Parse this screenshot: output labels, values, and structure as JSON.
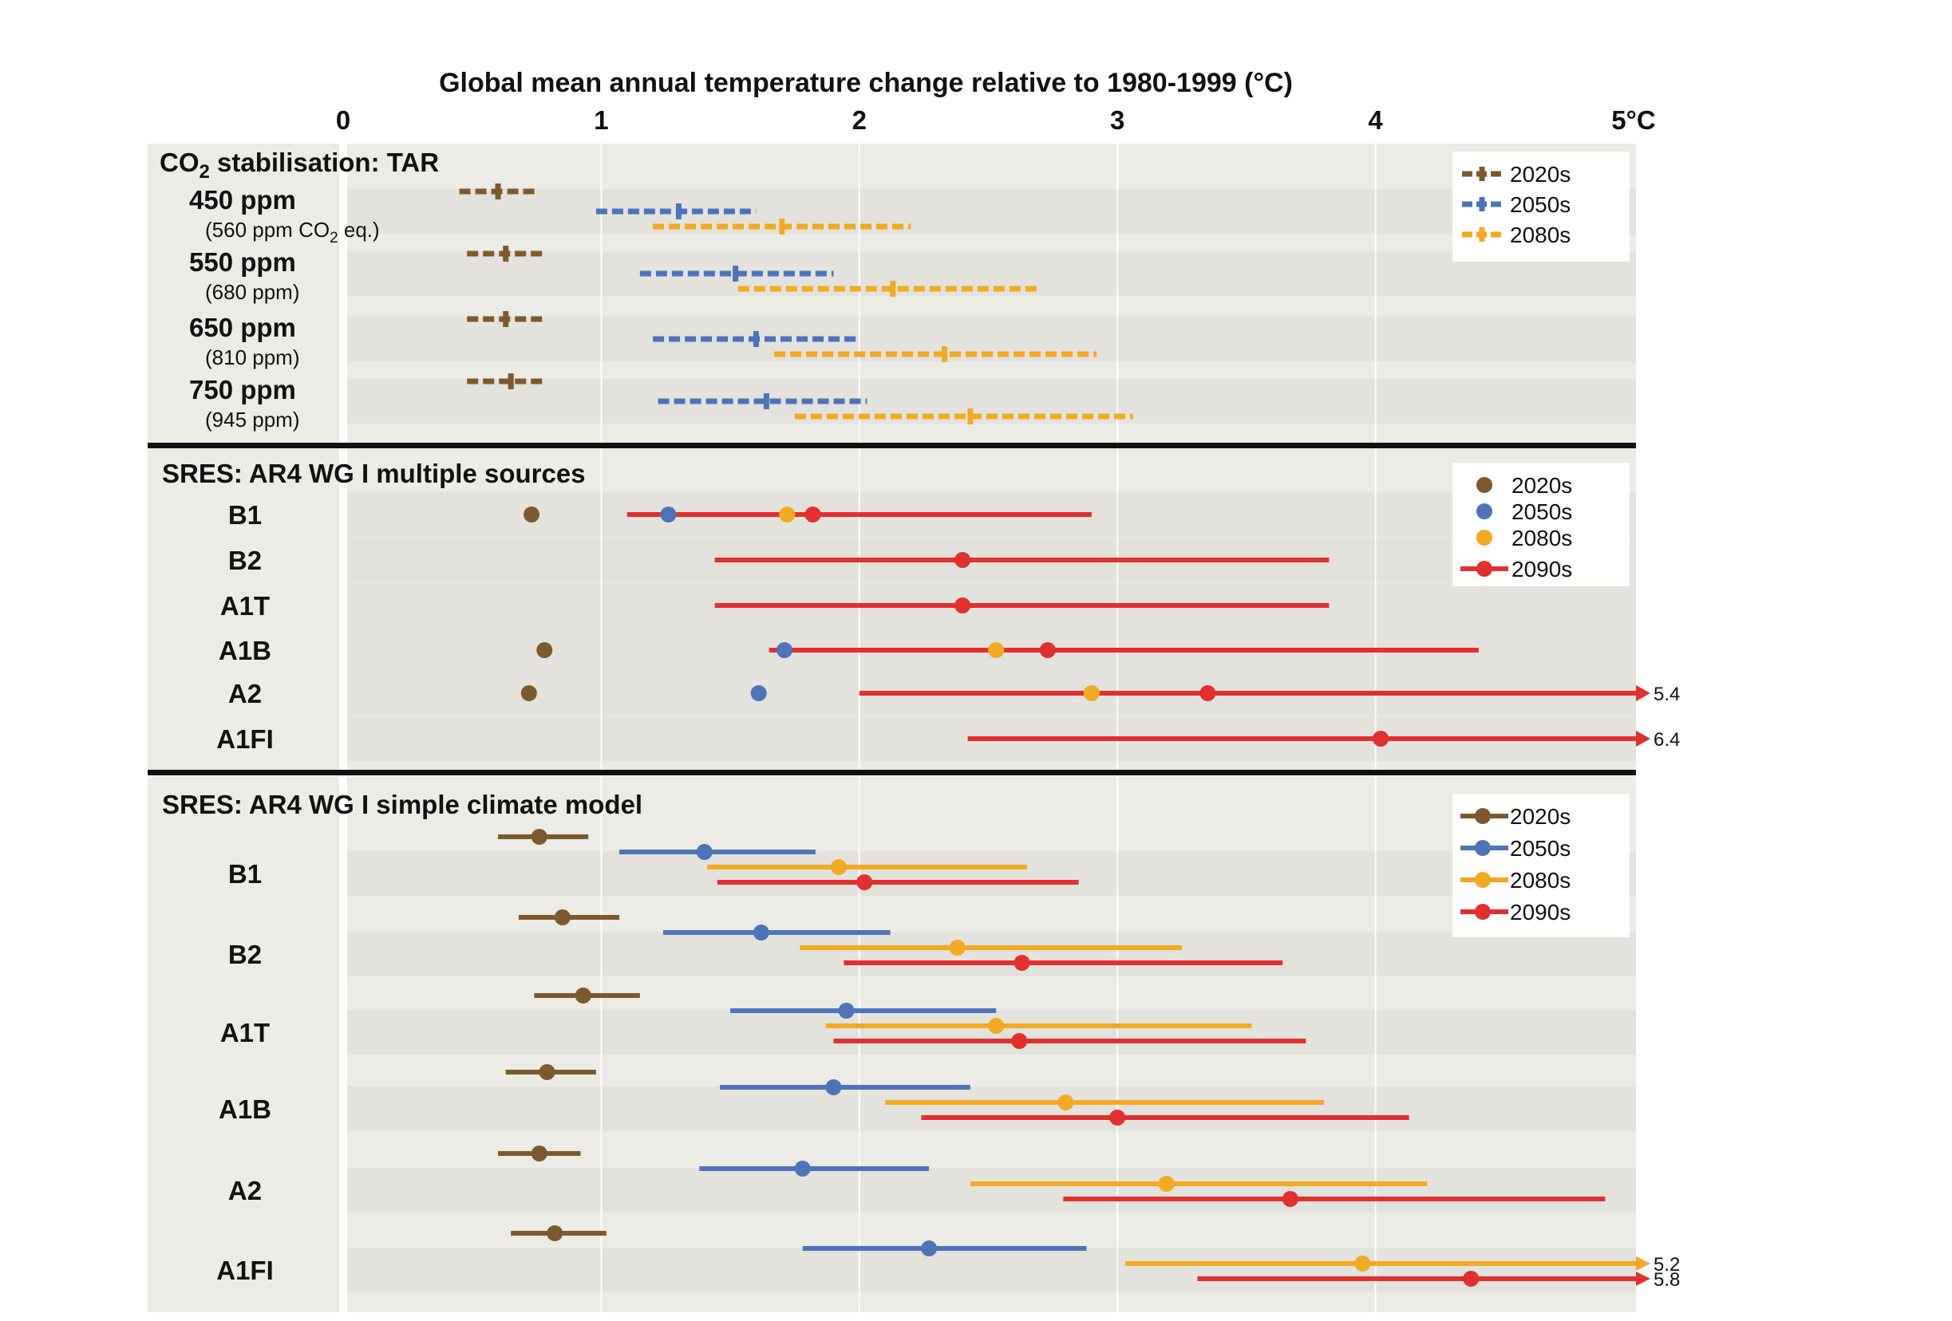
{
  "title": "Global mean annual temperature change relative to 1980-1999 (°C)",
  "axis": {
    "xlim": [
      0,
      5
    ],
    "ticks": [
      {
        "value": 0,
        "label": "0"
      },
      {
        "value": 1,
        "label": "1"
      },
      {
        "value": 2,
        "label": "2"
      },
      {
        "value": 3,
        "label": "3"
      },
      {
        "value": 4,
        "label": "4"
      },
      {
        "value": 5,
        "label": "5°C"
      }
    ],
    "grid": true
  },
  "colors": {
    "2020s": "#7b5a30",
    "2050s": "#4f73b8",
    "2080s": "#f2aa22",
    "2090s": "#e2302f",
    "panel_bg": "#ecebe5",
    "row_bg": "#e3e2dc",
    "separator": "#111111"
  },
  "chart_data": [
    {
      "type": "range",
      "title": "CO2 stabilisation: TAR",
      "title_main": "CO",
      "title_sub": "2",
      "title_rest": " stabilisation: TAR",
      "style": "dashed",
      "marker": "plus",
      "legend": {
        "position": "top-right",
        "entries": [
          "2020s",
          "2050s",
          "2080s"
        ]
      },
      "rows": [
        {
          "label": "450 ppm",
          "sublabel_main": "(560 ppm CO",
          "sublabel_sub": "2",
          "sublabel_rest": " eq.)",
          "series": [
            {
              "name": "2020s",
              "low": 0.45,
              "central": 0.6,
              "high": 0.75
            },
            {
              "name": "2050s",
              "low": 0.98,
              "central": 1.3,
              "high": 1.6
            },
            {
              "name": "2080s",
              "low": 1.2,
              "central": 1.7,
              "high": 2.2
            }
          ]
        },
        {
          "label": "550 ppm",
          "sublabel": "(680 ppm)",
          "series": [
            {
              "name": "2020s",
              "low": 0.48,
              "central": 0.63,
              "high": 0.78
            },
            {
              "name": "2050s",
              "low": 1.15,
              "central": 1.52,
              "high": 1.9
            },
            {
              "name": "2080s",
              "low": 1.53,
              "central": 2.13,
              "high": 2.7
            }
          ]
        },
        {
          "label": "650 ppm",
          "sublabel": "(810 ppm)",
          "series": [
            {
              "name": "2020s",
              "low": 0.48,
              "central": 0.63,
              "high": 0.78
            },
            {
              "name": "2050s",
              "low": 1.2,
              "central": 1.6,
              "high": 2.0
            },
            {
              "name": "2080s",
              "low": 1.67,
              "central": 2.33,
              "high": 2.92
            }
          ]
        },
        {
          "label": "750 ppm",
          "sublabel": "(945 ppm)",
          "series": [
            {
              "name": "2020s",
              "low": 0.48,
              "central": 0.65,
              "high": 0.78
            },
            {
              "name": "2050s",
              "low": 1.22,
              "central": 1.64,
              "high": 2.03
            },
            {
              "name": "2080s",
              "low": 1.75,
              "central": 2.43,
              "high": 3.06
            }
          ]
        }
      ]
    },
    {
      "type": "range",
      "title": "SRES: AR4 WG I multiple sources",
      "style": "solid-thin",
      "marker": "dot",
      "legend": {
        "position": "top-right",
        "entries": [
          "2020s",
          "2050s",
          "2080s",
          "2090s"
        ]
      },
      "rows": [
        {
          "label": "B1",
          "range": {
            "name": "2090s",
            "low": 1.1,
            "high": 2.9
          },
          "points": [
            {
              "name": "2020s",
              "value": 0.73
            },
            {
              "name": "2050s",
              "value": 1.26
            },
            {
              "name": "2080s",
              "value": 1.72
            },
            {
              "name": "2090s",
              "value": 1.82
            }
          ]
        },
        {
          "label": "B2",
          "range": {
            "name": "2090s",
            "low": 1.44,
            "high": 3.82
          },
          "points": [
            {
              "name": "2090s",
              "value": 2.4
            }
          ]
        },
        {
          "label": "A1T",
          "range": {
            "name": "2090s",
            "low": 1.44,
            "high": 3.82
          },
          "points": [
            {
              "name": "2090s",
              "value": 2.4
            }
          ]
        },
        {
          "label": "A1B",
          "range": {
            "name": "2090s",
            "low": 1.65,
            "high": 4.4
          },
          "points": [
            {
              "name": "2020s",
              "value": 0.78
            },
            {
              "name": "2050s",
              "value": 1.71
            },
            {
              "name": "2080s",
              "value": 2.53
            },
            {
              "name": "2090s",
              "value": 2.73
            }
          ]
        },
        {
          "label": "A2",
          "range": {
            "name": "2090s",
            "low": 2.0,
            "high": 5.4
          },
          "end_label": "5.4",
          "points": [
            {
              "name": "2020s",
              "value": 0.72
            },
            {
              "name": "2050s",
              "value": 1.61
            },
            {
              "name": "2080s",
              "value": 2.9
            },
            {
              "name": "2090s",
              "value": 3.35
            }
          ]
        },
        {
          "label": "A1FI",
          "range": {
            "name": "2090s",
            "low": 2.42,
            "high": 6.4
          },
          "end_label": "6.4",
          "points": [
            {
              "name": "2090s",
              "value": 4.02
            }
          ]
        }
      ]
    },
    {
      "type": "range",
      "title": "SRES: AR4 WG I simple climate model",
      "style": "solid",
      "marker": "dot",
      "legend": {
        "position": "top-right",
        "entries": [
          "2020s",
          "2050s",
          "2080s",
          "2090s"
        ]
      },
      "rows": [
        {
          "label": "B1",
          "series": [
            {
              "name": "2020s",
              "low": 0.6,
              "central": 0.76,
              "high": 0.95
            },
            {
              "name": "2050s",
              "low": 1.07,
              "central": 1.4,
              "high": 1.83
            },
            {
              "name": "2080s",
              "low": 1.41,
              "central": 1.92,
              "high": 2.65
            },
            {
              "name": "2090s",
              "low": 1.45,
              "central": 2.02,
              "high": 2.85
            }
          ]
        },
        {
          "label": "B2",
          "series": [
            {
              "name": "2020s",
              "low": 0.68,
              "central": 0.85,
              "high": 1.07
            },
            {
              "name": "2050s",
              "low": 1.24,
              "central": 1.62,
              "high": 2.12
            },
            {
              "name": "2080s",
              "low": 1.77,
              "central": 2.38,
              "high": 3.25
            },
            {
              "name": "2090s",
              "low": 1.94,
              "central": 2.63,
              "high": 3.64
            }
          ]
        },
        {
          "label": "A1T",
          "series": [
            {
              "name": "2020s",
              "low": 0.74,
              "central": 0.93,
              "high": 1.15
            },
            {
              "name": "2050s",
              "low": 1.5,
              "central": 1.95,
              "high": 2.53
            },
            {
              "name": "2080s",
              "low": 1.87,
              "central": 2.53,
              "high": 3.52
            },
            {
              "name": "2090s",
              "low": 1.9,
              "central": 2.62,
              "high": 3.73
            }
          ]
        },
        {
          "label": "A1B",
          "series": [
            {
              "name": "2020s",
              "low": 0.63,
              "central": 0.79,
              "high": 0.98
            },
            {
              "name": "2050s",
              "low": 1.46,
              "central": 1.9,
              "high": 2.43
            },
            {
              "name": "2080s",
              "low": 2.1,
              "central": 2.8,
              "high": 3.8
            },
            {
              "name": "2090s",
              "low": 2.24,
              "central": 3.0,
              "high": 4.13
            }
          ]
        },
        {
          "label": "A2",
          "series": [
            {
              "name": "2020s",
              "low": 0.6,
              "central": 0.76,
              "high": 0.92
            },
            {
              "name": "2050s",
              "low": 1.38,
              "central": 1.78,
              "high": 2.27
            },
            {
              "name": "2080s",
              "low": 2.43,
              "central": 3.19,
              "high": 4.2
            },
            {
              "name": "2090s",
              "low": 2.79,
              "central": 3.67,
              "high": 4.89
            }
          ]
        },
        {
          "label": "A1FI",
          "series": [
            {
              "name": "2020s",
              "low": 0.65,
              "central": 0.82,
              "high": 1.02
            },
            {
              "name": "2050s",
              "low": 1.78,
              "central": 2.27,
              "high": 2.88
            },
            {
              "name": "2080s",
              "low": 3.03,
              "central": 3.95,
              "high": 5.2,
              "end_label": "5.2"
            },
            {
              "name": "2090s",
              "low": 3.31,
              "central": 4.37,
              "high": 5.8,
              "end_label": "5.8"
            }
          ]
        }
      ]
    }
  ]
}
